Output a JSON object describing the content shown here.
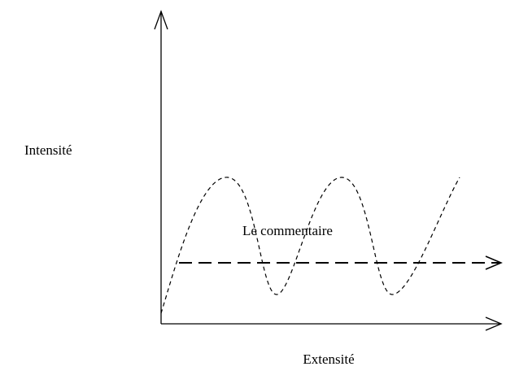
{
  "axes": {
    "y_label": "Intensité",
    "x_label": "Extensité"
  },
  "annotation": "Le commentaire"
}
